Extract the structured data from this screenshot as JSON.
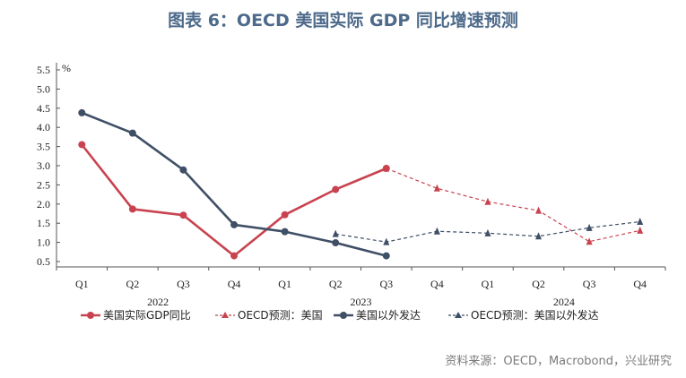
{
  "page": {
    "title": "图表 6：OECD 美国实际 GDP 同比增速预测",
    "source": "资料来源：OECD，Macrobond，兴业研究"
  },
  "chart_data": {
    "type": "line",
    "title": "图表 6：OECD 美国实际 GDP 同比增速预测",
    "ylabel": "%",
    "ylim": [
      0.5,
      5.5
    ],
    "yticks": [
      "0.5",
      "1.0",
      "1.5",
      "2.0",
      "2.5",
      "3.0",
      "3.5",
      "4.0",
      "4.5",
      "5.0",
      "5.5"
    ],
    "categories": [
      "Q1",
      "Q2",
      "Q3",
      "Q4",
      "Q1",
      "Q2",
      "Q3",
      "Q4",
      "Q1",
      "Q2",
      "Q3",
      "Q4"
    ],
    "year_groups": [
      {
        "label": "2022",
        "start": 0,
        "end": 3
      },
      {
        "label": "2023",
        "start": 4,
        "end": 7
      },
      {
        "label": "2024",
        "start": 8,
        "end": 11
      }
    ],
    "grid": false,
    "legend_position": "bottom",
    "series": [
      {
        "name": "美国实际GDP同比",
        "style": "solid",
        "marker": "circle",
        "color": "#c8434f",
        "values": [
          3.55,
          1.87,
          1.71,
          0.65,
          1.72,
          2.38,
          2.93,
          null,
          null,
          null,
          null,
          null
        ]
      },
      {
        "name": "OECD预测：美国",
        "style": "dashed",
        "marker": "triangle",
        "color": "#c8434f",
        "values": [
          null,
          null,
          null,
          null,
          null,
          null,
          2.93,
          2.41,
          2.06,
          1.83,
          1.02,
          1.31
        ]
      },
      {
        "name": "美国以外发达",
        "style": "solid",
        "marker": "circle",
        "color": "#3f4f66",
        "values": [
          4.38,
          3.85,
          2.89,
          1.46,
          1.28,
          0.99,
          0.65,
          null,
          null,
          null,
          null,
          null
        ]
      },
      {
        "name": "OECD预测：美国以外发达",
        "style": "dashed",
        "marker": "triangle",
        "color": "#3f4f66",
        "values": [
          null,
          null,
          null,
          null,
          null,
          1.22,
          1.01,
          1.29,
          1.24,
          1.16,
          1.38,
          1.54
        ]
      }
    ]
  }
}
